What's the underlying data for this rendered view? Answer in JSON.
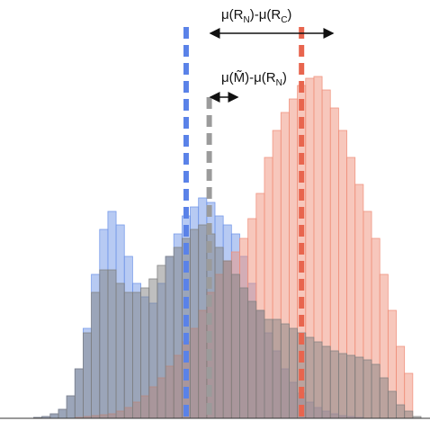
{
  "chart_data": {
    "type": "bar",
    "title": "",
    "xlabel": "",
    "ylabel": "",
    "bins": 50,
    "x": [
      0,
      1,
      2,
      3,
      4,
      5,
      6,
      7,
      8,
      9,
      10,
      11,
      12,
      13,
      14,
      15,
      16,
      17,
      18,
      19,
      20,
      21,
      22,
      23,
      24,
      25,
      26,
      27,
      28,
      29,
      30,
      31,
      32,
      33,
      34,
      35,
      36,
      37,
      38,
      39,
      40,
      41,
      42,
      43,
      44,
      45,
      46,
      47,
      48,
      49
    ],
    "ylim": [
      0,
      400
    ],
    "series": [
      {
        "color": "#6f95e8",
        "values": [
          0,
          0,
          0,
          1,
          2,
          5,
          10,
          25,
          55,
          100,
          160,
          210,
          230,
          215,
          180,
          150,
          135,
          128,
          150,
          180,
          205,
          225,
          235,
          245,
          240,
          225,
          215,
          205,
          180,
          150,
          120,
          95,
          75,
          55,
          40,
          28,
          18,
          12,
          8,
          5,
          3,
          2,
          1,
          0,
          0,
          0,
          0,
          0,
          0,
          0
        ]
      },
      {
        "color": "#f08f7a",
        "values": [
          0,
          0,
          0,
          0,
          0,
          0,
          0,
          0,
          1,
          2,
          3,
          4,
          5,
          8,
          12,
          18,
          25,
          35,
          45,
          58,
          70,
          85,
          100,
          120,
          140,
          160,
          175,
          185,
          200,
          222,
          250,
          290,
          320,
          340,
          355,
          370,
          378,
          380,
          365,
          345,
          320,
          290,
          260,
          230,
          200,
          160,
          120,
          80,
          50,
          0
        ]
      },
      {
        "color": "#7f7f7f",
        "values": [
          0,
          0,
          0,
          1,
          2,
          5,
          10,
          25,
          55,
          95,
          140,
          165,
          165,
          150,
          140,
          140,
          145,
          155,
          170,
          180,
          190,
          200,
          210,
          215,
          205,
          190,
          175,
          160,
          145,
          130,
          120,
          110,
          110,
          105,
          100,
          95,
          90,
          85,
          80,
          75,
          72,
          70,
          68,
          65,
          60,
          45,
          30,
          15,
          8,
          2
        ]
      }
    ],
    "means": [
      {
        "id": "blue",
        "x": 21.5,
        "color": "#5a82e8"
      },
      {
        "id": "gray",
        "x": 24.3,
        "color": "#9b9b9b"
      },
      {
        "id": "red",
        "x": 35.5,
        "color": "#e8654e"
      }
    ],
    "annotations": {
      "top_label": "μ(R_N)-μ(R_C)",
      "top_label_main_1": "μ(R",
      "top_label_sub_1": "N",
      "top_label_main_2": ")-μ(R",
      "top_label_sub_2": "C",
      "top_label_main_3": ")",
      "mid_label": "μ(M̃)-μ(R_N)",
      "mid_label_main_1": "μ(M̃)-μ(R",
      "mid_label_sub_1": "N",
      "mid_label_main_2": ")"
    }
  }
}
